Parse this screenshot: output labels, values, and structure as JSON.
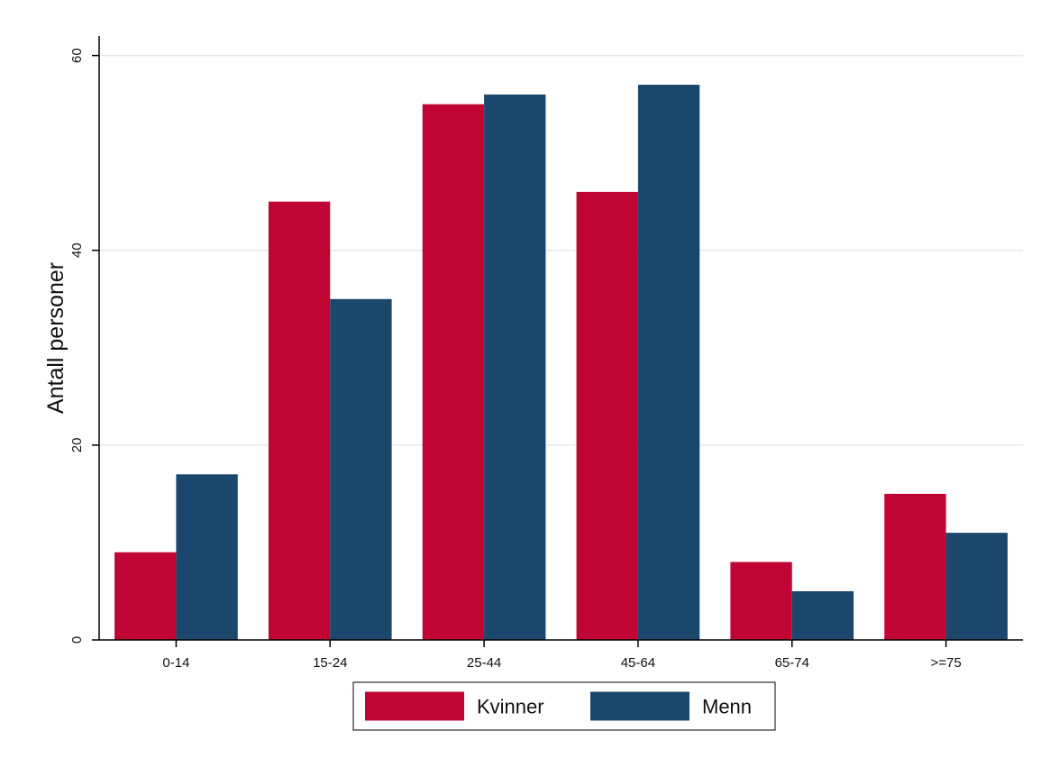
{
  "chart_data": {
    "type": "bar",
    "title": "",
    "xlabel": "",
    "ylabel": "Antall personer",
    "categories": [
      "0-14",
      "15-24",
      "25-44",
      "45-64",
      "65-74",
      ">=75"
    ],
    "series": [
      {
        "name": "Kvinner",
        "color": "#c00434",
        "values": [
          9,
          45,
          55,
          46,
          8,
          15
        ]
      },
      {
        "name": "Menn",
        "color": "#1b476d",
        "values": [
          17,
          35,
          56,
          57,
          5,
          11
        ]
      }
    ],
    "ylim": [
      0,
      62
    ],
    "yticks": [
      0,
      20,
      40,
      60
    ],
    "grid": true,
    "legend_position": "bottom"
  }
}
